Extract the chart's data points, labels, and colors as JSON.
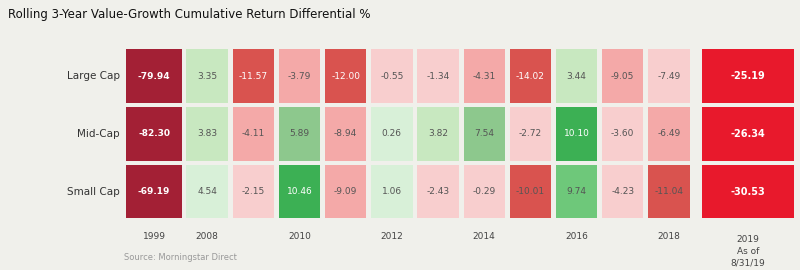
{
  "title": "Rolling 3-Year Value-Growth Cumulative Return Differential %",
  "source": "Source: Morningstar Direct",
  "rows": [
    "Large Cap",
    "Mid-Cap",
    "Small Cap"
  ],
  "values": [
    [
      -79.94,
      3.35,
      -11.57,
      -3.79,
      -12.0,
      -0.55,
      -1.34,
      -4.31,
      -14.02,
      3.44,
      -9.05,
      -7.49,
      -25.19
    ],
    [
      -82.3,
      3.83,
      -4.11,
      5.89,
      -8.94,
      0.26,
      3.82,
      7.54,
      -2.72,
      10.1,
      -3.6,
      -6.49,
      -26.34
    ],
    [
      -69.19,
      4.54,
      -2.15,
      10.46,
      -9.09,
      1.06,
      -2.43,
      -0.29,
      -10.01,
      9.74,
      -4.23,
      -11.04,
      -30.53
    ]
  ],
  "colors": [
    [
      "#a32035",
      "#c8e8c0",
      "#d9534f",
      "#f4a9a8",
      "#d9534f",
      "#f8cece",
      "#f8cece",
      "#f4a9a8",
      "#d9534f",
      "#c8e8c0",
      "#f4a9a8",
      "#f8cece",
      "#e8192c"
    ],
    [
      "#a32035",
      "#c8e8c0",
      "#f4a9a8",
      "#8dc88d",
      "#f4a9a8",
      "#d8f0d8",
      "#c8e8c0",
      "#8dc88d",
      "#f8cece",
      "#3cb054",
      "#f8cece",
      "#f4a9a8",
      "#e8192c"
    ],
    [
      "#a32035",
      "#d8f0d8",
      "#f8cece",
      "#3cb054",
      "#f4a9a8",
      "#d8f0d8",
      "#f8cece",
      "#f8cece",
      "#d9534f",
      "#6ec87a",
      "#f8cece",
      "#d9534f",
      "#e8192c"
    ]
  ],
  "text_colors": [
    [
      "#ffffff",
      "#555555",
      "#ffffff",
      "#555555",
      "#ffffff",
      "#555555",
      "#555555",
      "#555555",
      "#ffffff",
      "#555555",
      "#555555",
      "#555555",
      "#ffffff"
    ],
    [
      "#ffffff",
      "#555555",
      "#555555",
      "#555555",
      "#555555",
      "#555555",
      "#555555",
      "#555555",
      "#555555",
      "#ffffff",
      "#555555",
      "#555555",
      "#ffffff"
    ],
    [
      "#ffffff",
      "#555555",
      "#555555",
      "#ffffff",
      "#555555",
      "#555555",
      "#555555",
      "#555555",
      "#555555",
      "#555555",
      "#555555",
      "#555555",
      "#ffffff"
    ]
  ],
  "year_labels": {
    "0": "1999",
    "1": "2008",
    "3": "2010",
    "5": "2012",
    "7": "2014",
    "9": "2016",
    "11": "2018",
    "12": "2019\nAs of\n8/31/19"
  },
  "fig_width": 8.0,
  "fig_height": 2.7,
  "bg_color": "#f0f0eb",
  "ncols": 13,
  "nrows": 3
}
